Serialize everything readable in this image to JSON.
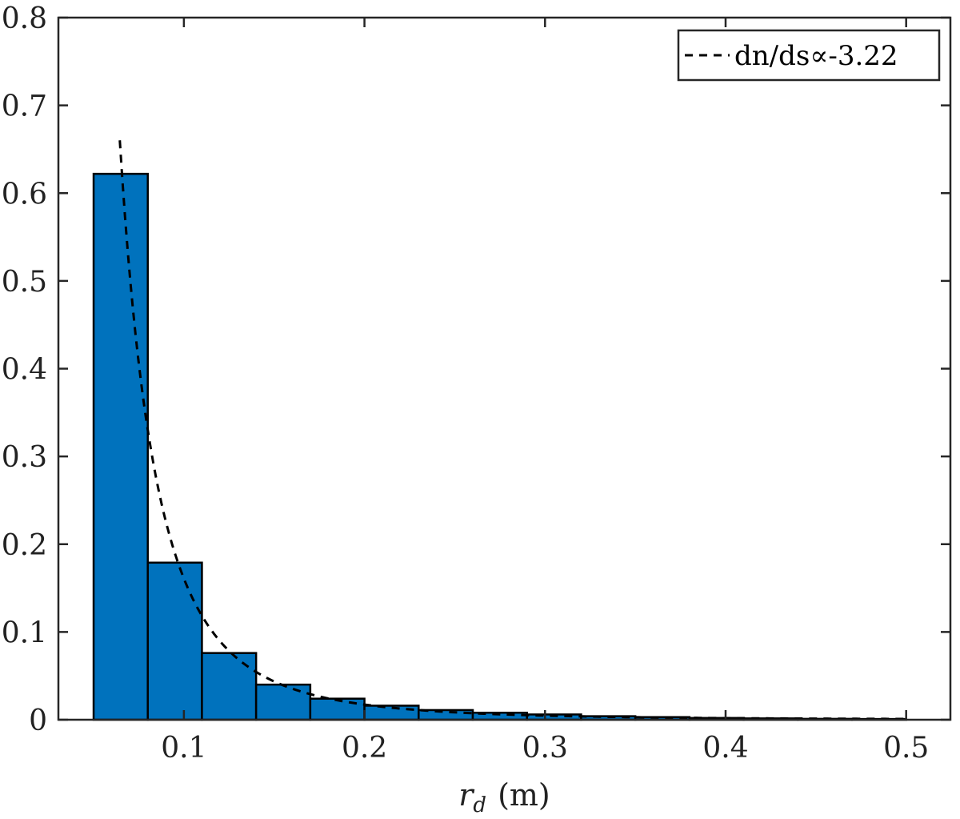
{
  "chart_data": {
    "type": "bar",
    "bin_edges": [
      0.05,
      0.08,
      0.11,
      0.14,
      0.17,
      0.2,
      0.23,
      0.26,
      0.29,
      0.32,
      0.35,
      0.38,
      0.41,
      0.44,
      0.47,
      0.5
    ],
    "values": [
      0.622,
      0.179,
      0.076,
      0.04,
      0.024,
      0.016,
      0.011,
      0.008,
      0.006,
      0.004,
      0.003,
      0.002,
      0.0015,
      0.001,
      0.0008
    ],
    "bar_color": "#0072BD",
    "fit_curve": {
      "name": "dn/ds∝-3.22",
      "exponent": -3.22,
      "x_start": 0.0645,
      "x_end": 0.5,
      "reference_point": [
        0.08,
        0.33
      ],
      "color": "#000000",
      "style": "dashed"
    },
    "xlabel_var": "r",
    "xlabel_sub": "d",
    "xlabel_unit": "(m)",
    "ylabel": "",
    "title": "",
    "xlim": [
      0.0305,
      0.5245
    ],
    "ylim": [
      0,
      0.8
    ],
    "xticks": [
      0.1,
      0.2,
      0.3,
      0.4,
      0.5
    ],
    "xtick_labels": [
      "0.1",
      "0.2",
      "0.3",
      "0.4",
      "0.5"
    ],
    "yticks": [
      0,
      0.1,
      0.2,
      0.3,
      0.4,
      0.5,
      0.6,
      0.7,
      0.8
    ],
    "ytick_labels": [
      "0",
      "0.1",
      "0.2",
      "0.3",
      "0.4",
      "0.5",
      "0.6",
      "0.7",
      "0.8"
    ],
    "legend_label": "dn/ds∝-3.22",
    "legend_position": "top-right",
    "grid": false
  }
}
